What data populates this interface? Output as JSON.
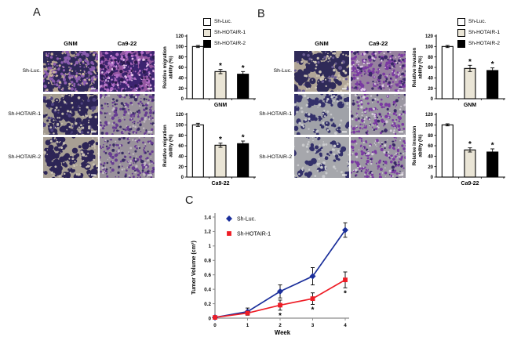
{
  "panels": {
    "a": {
      "label": "A",
      "col_headers": [
        "GNM",
        "Ca9-22"
      ],
      "row_labels": [
        "Sh-Luc.",
        "Sh-HOTAIR-1",
        "Sh-HOTAIR-2"
      ],
      "legend": [
        {
          "label": "Sh-Luc.",
          "color": "#ffffff"
        },
        {
          "label": "Sh-HOTAIR-1",
          "color": "#eae5d6"
        },
        {
          "label": "Sh-HOTAIR-2",
          "color": "#000000"
        }
      ]
    },
    "b": {
      "label": "B",
      "col_headers": [
        "GNM",
        "Ca9-22"
      ],
      "row_labels": [
        "Sh-Luc.",
        "Sh-HOTAIR-1",
        "Sh-HOTAIR-2"
      ],
      "legend": [
        {
          "label": "Sh-Luc.",
          "color": "#ffffff"
        },
        {
          "label": "Sh-HOTAIR-1",
          "color": "#eae5d6"
        },
        {
          "label": "Sh-HOTAIR-2",
          "color": "#000000"
        }
      ]
    },
    "c": {
      "label": "C"
    }
  },
  "chart_data": [
    {
      "type": "bar",
      "panel": "A",
      "title": "GNM",
      "ylabel": "Relative migration ability (%)",
      "ylabel_lines": [
        "Relative migration",
        "ability (%)"
      ],
      "categories": [
        "Sh-Luc.",
        "Sh-HOTAIR-1",
        "Sh-HOTAIR-2"
      ],
      "values": [
        100,
        52,
        47
      ],
      "errors": [
        2,
        4,
        5
      ],
      "sig": [
        false,
        true,
        true
      ],
      "bar_colors": [
        "#ffffff",
        "#eae5d6",
        "#000000"
      ],
      "ylim": [
        0,
        120
      ],
      "yticks": [
        0,
        20,
        40,
        60,
        80,
        100,
        120
      ]
    },
    {
      "type": "bar",
      "panel": "A",
      "title": "Ca9-22",
      "ylabel": "Relative migration ability (%)",
      "ylabel_lines": [
        "Relative migration",
        "ability (%)"
      ],
      "categories": [
        "Sh-Luc.",
        "Sh-HOTAIR-1",
        "Sh-HOTAIR-2"
      ],
      "values": [
        100,
        61,
        64
      ],
      "errors": [
        3,
        4,
        5
      ],
      "sig": [
        false,
        true,
        true
      ],
      "bar_colors": [
        "#ffffff",
        "#eae5d6",
        "#000000"
      ],
      "ylim": [
        0,
        120
      ],
      "yticks": [
        0,
        20,
        40,
        60,
        80,
        100,
        120
      ]
    },
    {
      "type": "bar",
      "panel": "B",
      "title": "GNM",
      "ylabel": "Relative invasion ability (%)",
      "ylabel_lines": [
        "Relative invasion",
        "ability (%)"
      ],
      "categories": [
        "Sh-Luc.",
        "Sh-HOTAIR-1",
        "Sh-HOTAIR-2"
      ],
      "values": [
        100,
        58,
        54
      ],
      "errors": [
        2,
        6,
        5
      ],
      "sig": [
        false,
        true,
        true
      ],
      "bar_colors": [
        "#ffffff",
        "#eae5d6",
        "#000000"
      ],
      "ylim": [
        0,
        120
      ],
      "yticks": [
        0,
        20,
        40,
        60,
        80,
        100,
        120
      ]
    },
    {
      "type": "bar",
      "panel": "B",
      "title": "Ca9-22",
      "ylabel": "Relative invasion ability (%)",
      "ylabel_lines": [
        "Relative invasion",
        "ability (%)"
      ],
      "categories": [
        "Sh-Luc.",
        "Sh-HOTAIR-1",
        "Sh-HOTAIR-2"
      ],
      "values": [
        100,
        52,
        48
      ],
      "errors": [
        2,
        4,
        6
      ],
      "sig": [
        false,
        true,
        true
      ],
      "bar_colors": [
        "#ffffff",
        "#eae5d6",
        "#000000"
      ],
      "ylim": [
        0,
        120
      ],
      "yticks": [
        0,
        20,
        40,
        60,
        80,
        100,
        120
      ]
    },
    {
      "type": "line",
      "panel": "C",
      "xlabel": "Week",
      "ylabel": "Tumor Volume (cm³)",
      "x": [
        0,
        1,
        2,
        3,
        4
      ],
      "xticks": [
        0,
        1,
        2,
        3,
        4
      ],
      "ylim": [
        0,
        1.4
      ],
      "yticks": [
        0,
        0.2,
        0.4,
        0.6,
        0.8,
        1,
        1.2,
        1.4
      ],
      "legend_position": "top-left",
      "series": [
        {
          "name": "Sh-Luc.",
          "color": "#1b2f9b",
          "marker": "diamond",
          "values": [
            0.01,
            0.09,
            0.37,
            0.58,
            1.22
          ],
          "errors": [
            0.01,
            0.05,
            0.09,
            0.12,
            0.1
          ]
        },
        {
          "name": "Sh-HOTAIR-1",
          "color": "#ee1c25",
          "marker": "square",
          "values": [
            0.01,
            0.07,
            0.18,
            0.27,
            0.53
          ],
          "errors": [
            0.01,
            0.02,
            0.07,
            0.08,
            0.11
          ],
          "sig_x": [
            2,
            3,
            4
          ]
        }
      ]
    }
  ]
}
